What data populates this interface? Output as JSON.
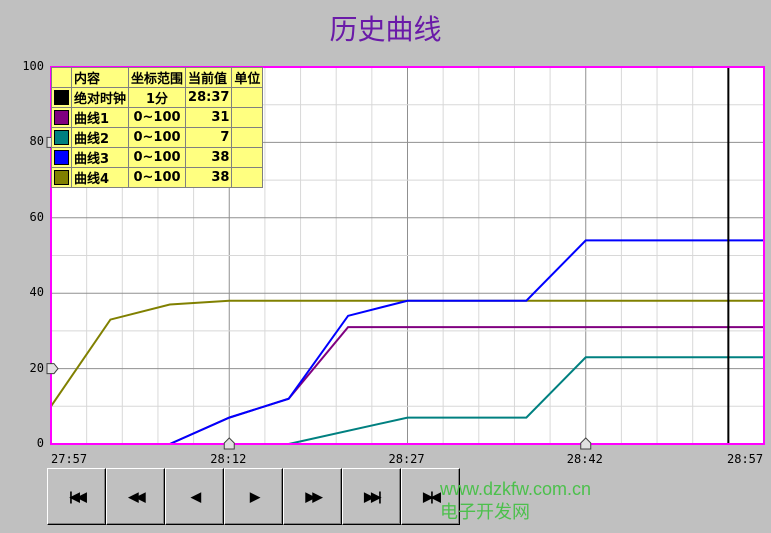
{
  "title": "历史曲线",
  "legend": {
    "headers": [
      "内容",
      "坐标范围",
      "当前值",
      "单位"
    ],
    "rows": [
      {
        "color": "#000000",
        "name": "绝对时钟",
        "range": "1分",
        "value": "28:37",
        "unit": ""
      },
      {
        "color": "#800080",
        "name": "曲线1",
        "range": "0~100",
        "value": "31",
        "unit": ""
      },
      {
        "color": "#008080",
        "name": "曲线2",
        "range": "0~100",
        "value": "7",
        "unit": ""
      },
      {
        "color": "#0000ff",
        "name": "曲线3",
        "range": "0~100",
        "value": "38",
        "unit": ""
      },
      {
        "color": "#808000",
        "name": "曲线4",
        "range": "0~100",
        "value": "38",
        "unit": ""
      }
    ]
  },
  "chart_data": {
    "type": "line",
    "ylim": [
      0,
      100
    ],
    "yticks": [
      "0",
      "20",
      "40",
      "60",
      "80",
      "100"
    ],
    "xticks": [
      "27:57",
      "28:12",
      "28:27",
      "28:42",
      "28:57"
    ],
    "xlim": [
      "27:57",
      "28:57"
    ],
    "grid": true,
    "border_color": "#ff00ff",
    "cursor_time": "28:54",
    "y_markers": [
      80,
      20
    ],
    "x_markers": [
      "28:12",
      "28:42"
    ],
    "series": [
      {
        "color": "#808000",
        "points": [
          [
            "27:57",
            10
          ],
          [
            "28:02",
            33
          ],
          [
            "28:07",
            37
          ],
          [
            "28:12",
            38
          ],
          [
            "28:57",
            38
          ]
        ]
      },
      {
        "color": "#800080",
        "points": [
          [
            "28:07",
            0
          ],
          [
            "28:12",
            7
          ],
          [
            "28:17",
            12
          ],
          [
            "28:22",
            31
          ],
          [
            "28:57",
            31
          ]
        ]
      },
      {
        "color": "#008080",
        "points": [
          [
            "28:17",
            0
          ],
          [
            "28:27",
            7
          ],
          [
            "28:37",
            7
          ],
          [
            "28:42",
            23
          ],
          [
            "28:57",
            23
          ]
        ]
      },
      {
        "color": "#0000ff",
        "points": [
          [
            "28:07",
            0
          ],
          [
            "28:12",
            7
          ],
          [
            "28:17",
            12
          ],
          [
            "28:22",
            34
          ],
          [
            "28:27",
            38
          ],
          [
            "28:37",
            38
          ],
          [
            "28:42",
            54
          ],
          [
            "28:57",
            54
          ]
        ]
      }
    ]
  },
  "buttons": [
    {
      "name": "first",
      "glyph": "|◀◀"
    },
    {
      "name": "fast-back",
      "glyph": "◀◀"
    },
    {
      "name": "back",
      "glyph": "◀"
    },
    {
      "name": "forward",
      "glyph": "▶"
    },
    {
      "name": "fast-forward",
      "glyph": "▶▶"
    },
    {
      "name": "last",
      "glyph": "▶▶|"
    },
    {
      "name": "zoom",
      "glyph": "▶|◀"
    }
  ],
  "watermark": {
    "line1": "www.dzkfw.com.cn",
    "line2": "电子开发网"
  }
}
